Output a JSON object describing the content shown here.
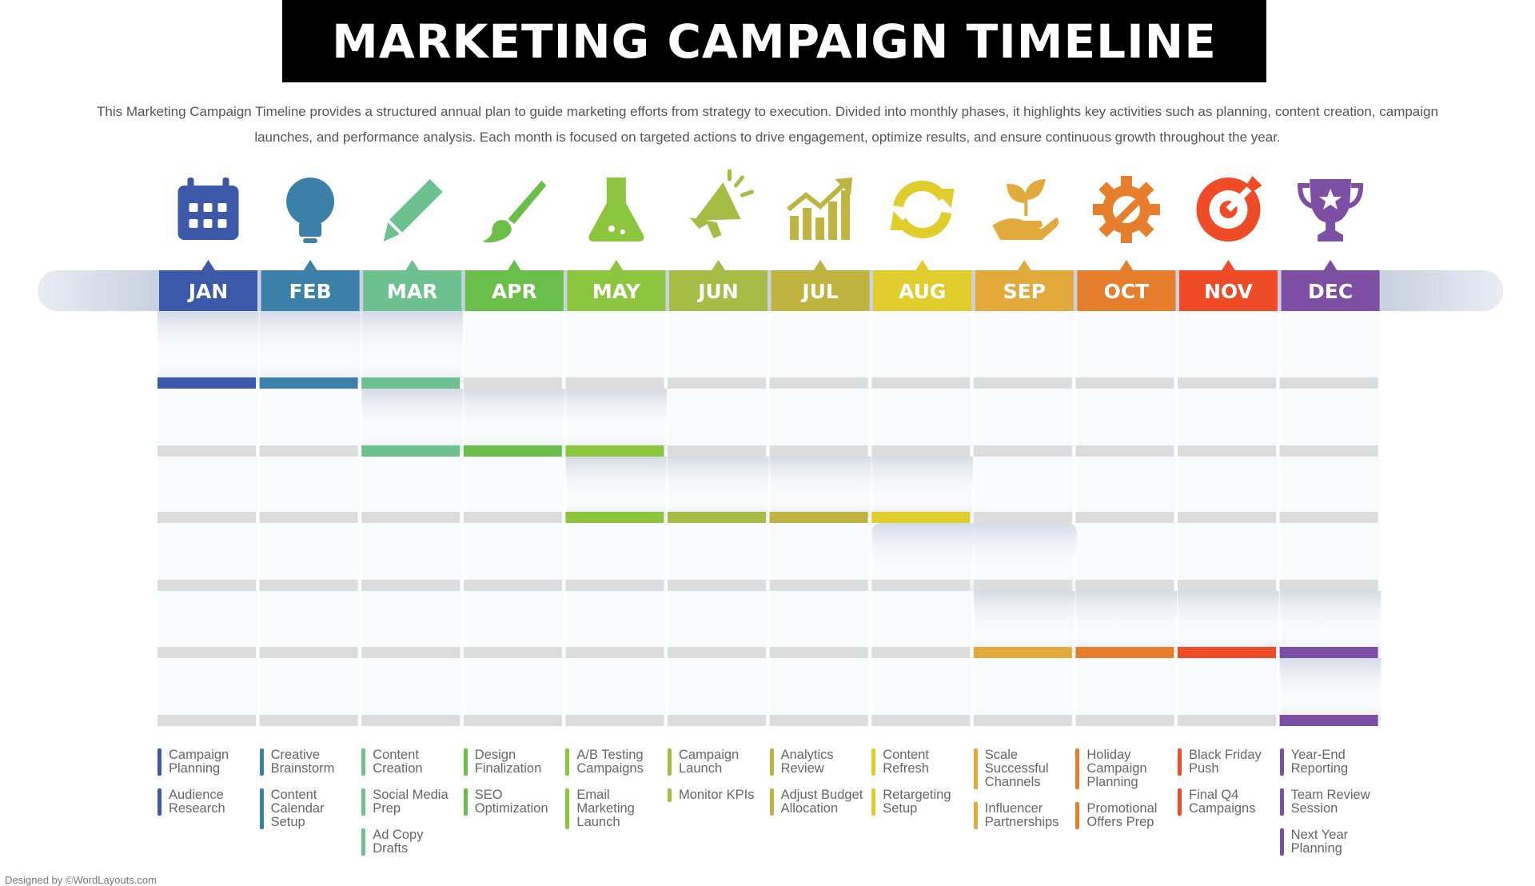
{
  "header": {
    "title": "MARKETING CAMPAIGN TIMELINE",
    "description": "This Marketing Campaign Timeline provides a structured annual plan to guide marketing efforts from strategy to execution. Divided into monthly phases, it highlights key activities such as planning, content creation, campaign launches, and performance analysis. Each month is focused on targeted actions to drive engagement, optimize results, and ensure continuous growth throughout the year."
  },
  "months": [
    {
      "label": "JAN",
      "color": "#3c58a8",
      "tasks": [
        "Campaign Planning",
        "Audience Research"
      ]
    },
    {
      "label": "FEB",
      "color": "#3a80a8",
      "tasks": [
        "Creative Brainstorm",
        "Content Calendar Setup"
      ]
    },
    {
      "label": "MAR",
      "color": "#6dc18e",
      "tasks": [
        "Content Creation",
        "Social Media Prep",
        "Ad Copy Drafts"
      ]
    },
    {
      "label": "APR",
      "color": "#6abf4b",
      "tasks": [
        "Design Finalization",
        "SEO Optimization"
      ]
    },
    {
      "label": "MAY",
      "color": "#8cc63f",
      "tasks": [
        "A/B Testing Campaigns",
        "Email Marketing Launch"
      ]
    },
    {
      "label": "JUN",
      "color": "#a5bc45",
      "tasks": [
        "Campaign Launch",
        "Monitor KPIs"
      ]
    },
    {
      "label": "JUL",
      "color": "#bfb440",
      "tasks": [
        "Analytics Review",
        "Adjust Budget Allocation"
      ]
    },
    {
      "label": "AUG",
      "color": "#e0cc2a",
      "tasks": [
        "Content Refresh",
        "Retargeting Setup"
      ]
    },
    {
      "label": "SEP",
      "color": "#e2a93b",
      "tasks": [
        "Scale Successful Channels",
        "Influencer Partnerships"
      ]
    },
    {
      "label": "OCT",
      "color": "#e67e2b",
      "tasks": [
        "Holiday Campaign Planning",
        "Promotional Offers Prep"
      ]
    },
    {
      "label": "NOV",
      "color": "#ef4b26",
      "tasks": [
        "Black Friday Push",
        "Final Q4 Campaigns"
      ]
    },
    {
      "label": "DEC",
      "color": "#7d4fa4",
      "tasks": [
        "Year-End Reporting",
        "Team Review Session",
        "Next Year Planning"
      ]
    }
  ],
  "footer": "Designed by ©WordLayouts.com"
}
